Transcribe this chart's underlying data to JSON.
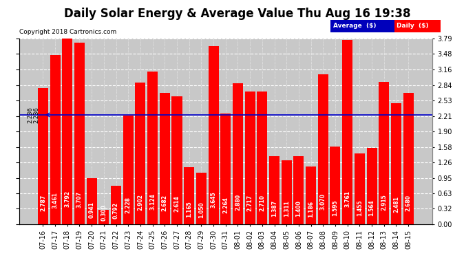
{
  "title": "Daily Solar Energy & Average Value Thu Aug 16 19:38",
  "copyright": "Copyright 2018 Cartronics.com",
  "categories": [
    "07-16",
    "07-17",
    "07-18",
    "07-19",
    "07-20",
    "07-21",
    "07-22",
    "07-23",
    "07-24",
    "07-25",
    "07-26",
    "07-27",
    "07-28",
    "07-29",
    "07-30",
    "07-31",
    "08-01",
    "08-02",
    "08-03",
    "08-04",
    "08-05",
    "08-06",
    "08-07",
    "08-08",
    "08-09",
    "08-10",
    "08-11",
    "08-12",
    "08-13",
    "08-14",
    "08-15"
  ],
  "values": [
    2.787,
    3.461,
    3.792,
    3.707,
    0.941,
    0.3,
    0.792,
    2.228,
    2.902,
    3.124,
    2.682,
    2.614,
    1.165,
    1.05,
    3.645,
    2.264,
    2.88,
    2.717,
    2.71,
    1.387,
    1.311,
    1.4,
    1.186,
    3.07,
    1.595,
    3.761,
    1.455,
    1.564,
    2.915,
    2.481,
    2.68
  ],
  "average_value": 2.236,
  "bar_color": "#ff0000",
  "average_line_color": "#0000cc",
  "background_color": "#ffffff",
  "plot_bg_color": "#c8c8c8",
  "grid_color": "#ffffff",
  "ylim": [
    0.0,
    3.79
  ],
  "yticks": [
    0.0,
    0.32,
    0.63,
    0.95,
    1.26,
    1.58,
    1.9,
    2.21,
    2.53,
    2.84,
    3.16,
    3.48,
    3.79
  ],
  "title_fontsize": 12,
  "tick_fontsize": 7,
  "bar_label_fontsize": 5.5,
  "avg_label": "2.236",
  "legend_avg_color": "#0000bb",
  "legend_daily_color": "#ff0000",
  "legend_text_color": "#ffffff"
}
